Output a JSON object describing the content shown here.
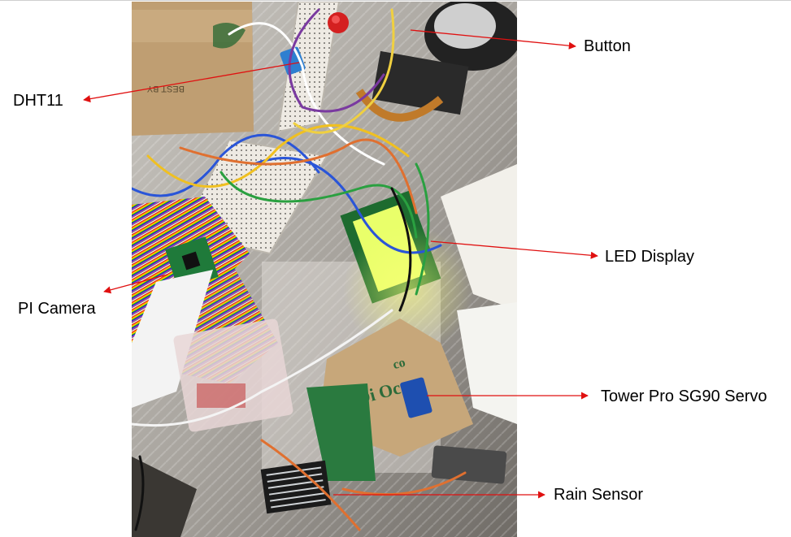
{
  "photo": {
    "description_icon": "hardware-photo",
    "packaging_text_1": "BEST BY",
    "packaging_text_2": "Oi Oc",
    "packaging_text_3": "co"
  },
  "labels": {
    "button": "Button",
    "dht11": "DHT11",
    "led_display": "LED Display",
    "pi_camera": "PI Camera",
    "servo": "Tower Pro SG90 Servo",
    "rain_sensor": "Rain Sensor"
  },
  "colors": {
    "arrow": "#e01010",
    "label_text": "#000000"
  }
}
